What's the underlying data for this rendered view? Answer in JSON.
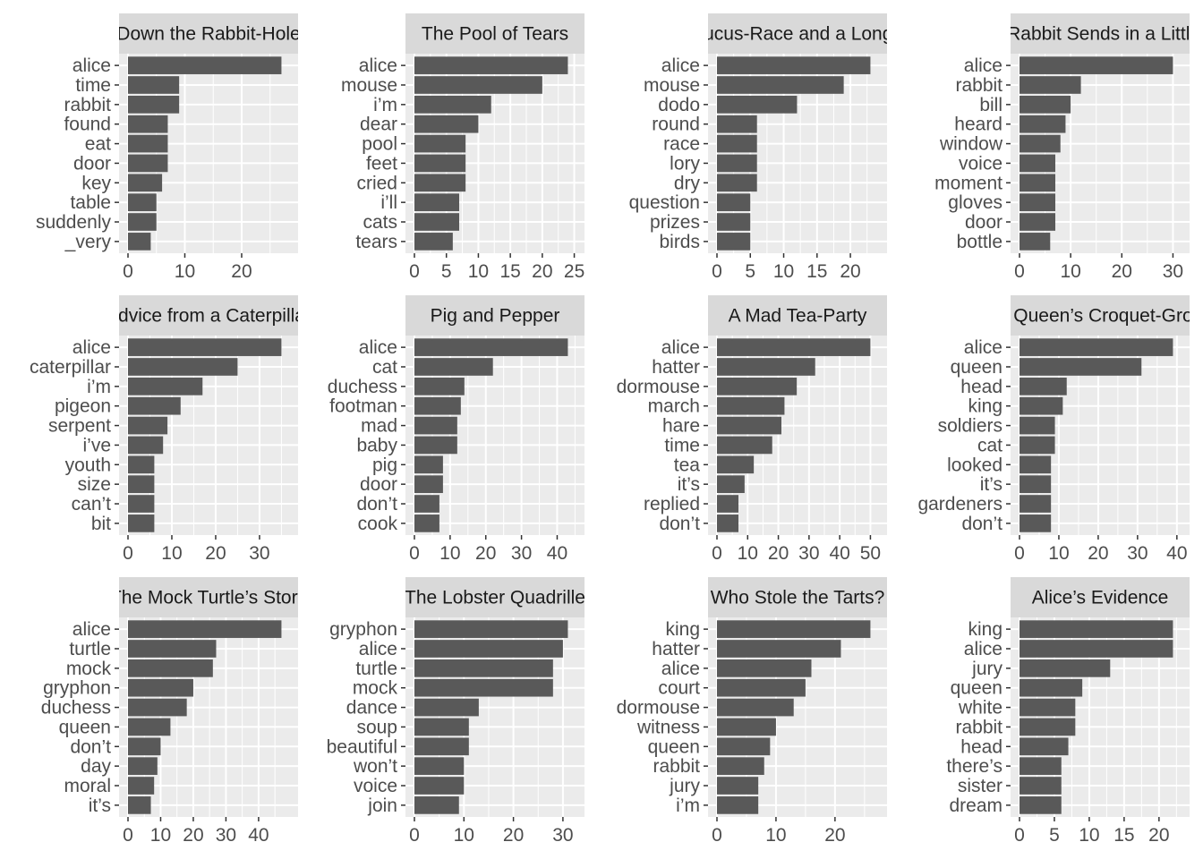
{
  "colors": {
    "background": "#ffffff",
    "panel": "#ebebeb",
    "strip": "#d9d9d9",
    "grid": "#ffffff",
    "bar": "#595959",
    "text": "#4d4d4d",
    "strip_text": "#1a1a1a",
    "tick": "#333333"
  },
  "chart_data": [
    {
      "type": "bar",
      "orientation": "horizontal",
      "title": "Down the Rabbit-Hole",
      "categories": [
        "alice",
        "time",
        "rabbit",
        "found",
        "eat",
        "door",
        "key",
        "table",
        "suddenly",
        "_very"
      ],
      "values": [
        27,
        9,
        9,
        7,
        7,
        7,
        6,
        5,
        5,
        4
      ],
      "xlim": [
        0,
        28.35
      ],
      "xticks": [
        0,
        10,
        20
      ],
      "grid": true
    },
    {
      "type": "bar",
      "orientation": "horizontal",
      "title": "The Pool of Tears",
      "categories": [
        "alice",
        "mouse",
        "i’m",
        "dear",
        "pool",
        "feet",
        "cried",
        "i’ll",
        "cats",
        "tears"
      ],
      "values": [
        24,
        20,
        12,
        10,
        8,
        8,
        8,
        7,
        7,
        6
      ],
      "xlim": [
        0,
        25.2
      ],
      "xticks": [
        0,
        5,
        10,
        15,
        20,
        25
      ],
      "grid": true
    },
    {
      "type": "bar",
      "orientation": "horizontal",
      "title": "A Caucus-Race and a Long Tale",
      "categories": [
        "alice",
        "mouse",
        "dodo",
        "round",
        "race",
        "lory",
        "dry",
        "question",
        "prizes",
        "birds"
      ],
      "values": [
        23,
        19,
        12,
        6,
        6,
        6,
        6,
        5,
        5,
        5
      ],
      "xlim": [
        0,
        24.15
      ],
      "xticks": [
        0,
        5,
        10,
        15,
        20
      ],
      "grid": true
    },
    {
      "type": "bar",
      "orientation": "horizontal",
      "title": "The Rabbit Sends in a Little Bill",
      "categories": [
        "alice",
        "rabbit",
        "bill",
        "heard",
        "window",
        "voice",
        "moment",
        "gloves",
        "door",
        "bottle"
      ],
      "values": [
        30,
        12,
        10,
        9,
        8,
        7,
        7,
        7,
        7,
        6
      ],
      "xlim": [
        0,
        31.5
      ],
      "xticks": [
        0,
        10,
        20,
        30
      ],
      "grid": true
    },
    {
      "type": "bar",
      "orientation": "horizontal",
      "title": "Advice from a Caterpillar",
      "categories": [
        "alice",
        "caterpillar",
        "i’m",
        "pigeon",
        "serpent",
        "i’ve",
        "youth",
        "size",
        "can’t",
        "bit"
      ],
      "values": [
        35,
        25,
        17,
        12,
        9,
        8,
        6,
        6,
        6,
        6
      ],
      "xlim": [
        0,
        36.75
      ],
      "xticks": [
        0,
        10,
        20,
        30
      ],
      "grid": true
    },
    {
      "type": "bar",
      "orientation": "horizontal",
      "title": "Pig and Pepper",
      "categories": [
        "alice",
        "cat",
        "duchess",
        "footman",
        "mad",
        "baby",
        "pig",
        "door",
        "don’t",
        "cook"
      ],
      "values": [
        43,
        22,
        14,
        13,
        12,
        12,
        8,
        8,
        7,
        7
      ],
      "xlim": [
        0,
        45.15
      ],
      "xticks": [
        0,
        10,
        20,
        30,
        40
      ],
      "grid": true
    },
    {
      "type": "bar",
      "orientation": "horizontal",
      "title": "A Mad Tea-Party",
      "categories": [
        "alice",
        "hatter",
        "dormouse",
        "march",
        "hare",
        "time",
        "tea",
        "it’s",
        "replied",
        "don’t"
      ],
      "values": [
        50,
        32,
        26,
        22,
        21,
        18,
        12,
        9,
        7,
        7
      ],
      "xlim": [
        0,
        52.5
      ],
      "xticks": [
        0,
        10,
        20,
        30,
        40,
        50
      ],
      "grid": true
    },
    {
      "type": "bar",
      "orientation": "horizontal",
      "title": "The Queen’s Croquet-Ground",
      "categories": [
        "alice",
        "queen",
        "head",
        "king",
        "soldiers",
        "cat",
        "looked",
        "it’s",
        "gardeners",
        "don’t"
      ],
      "values": [
        39,
        31,
        12,
        11,
        9,
        9,
        8,
        8,
        8,
        8
      ],
      "xlim": [
        0,
        40.95
      ],
      "xticks": [
        0,
        10,
        20,
        30,
        40
      ],
      "grid": true
    },
    {
      "type": "bar",
      "orientation": "horizontal",
      "title": "The Mock Turtle’s Story",
      "categories": [
        "alice",
        "turtle",
        "mock",
        "gryphon",
        "duchess",
        "queen",
        "don’t",
        "day",
        "moral",
        "it’s"
      ],
      "values": [
        47,
        27,
        26,
        20,
        18,
        13,
        10,
        9,
        8,
        7
      ],
      "xlim": [
        0,
        49.35
      ],
      "xticks": [
        0,
        10,
        20,
        30,
        40
      ],
      "grid": true
    },
    {
      "type": "bar",
      "orientation": "horizontal",
      "title": "The Lobster Quadrille",
      "categories": [
        "gryphon",
        "alice",
        "turtle",
        "mock",
        "dance",
        "soup",
        "beautiful",
        "won’t",
        "voice",
        "join"
      ],
      "values": [
        31,
        30,
        28,
        28,
        13,
        11,
        11,
        10,
        10,
        9
      ],
      "xlim": [
        0,
        32.55
      ],
      "xticks": [
        0,
        10,
        20,
        30
      ],
      "grid": true
    },
    {
      "type": "bar",
      "orientation": "horizontal",
      "title": "Who Stole the Tarts?",
      "categories": [
        "king",
        "hatter",
        "alice",
        "court",
        "dormouse",
        "witness",
        "queen",
        "rabbit",
        "jury",
        "i’m"
      ],
      "values": [
        26,
        21,
        16,
        15,
        13,
        10,
        9,
        8,
        7,
        7
      ],
      "xlim": [
        0,
        27.3
      ],
      "xticks": [
        0,
        10,
        20
      ],
      "grid": true
    },
    {
      "type": "bar",
      "orientation": "horizontal",
      "title": "Alice’s Evidence",
      "categories": [
        "king",
        "alice",
        "jury",
        "queen",
        "white",
        "rabbit",
        "head",
        "there’s",
        "sister",
        "dream"
      ],
      "values": [
        22,
        22,
        13,
        9,
        8,
        8,
        7,
        6,
        6,
        6
      ],
      "xlim": [
        0,
        23.1
      ],
      "xticks": [
        0,
        5,
        10,
        15,
        20
      ],
      "grid": true
    }
  ]
}
